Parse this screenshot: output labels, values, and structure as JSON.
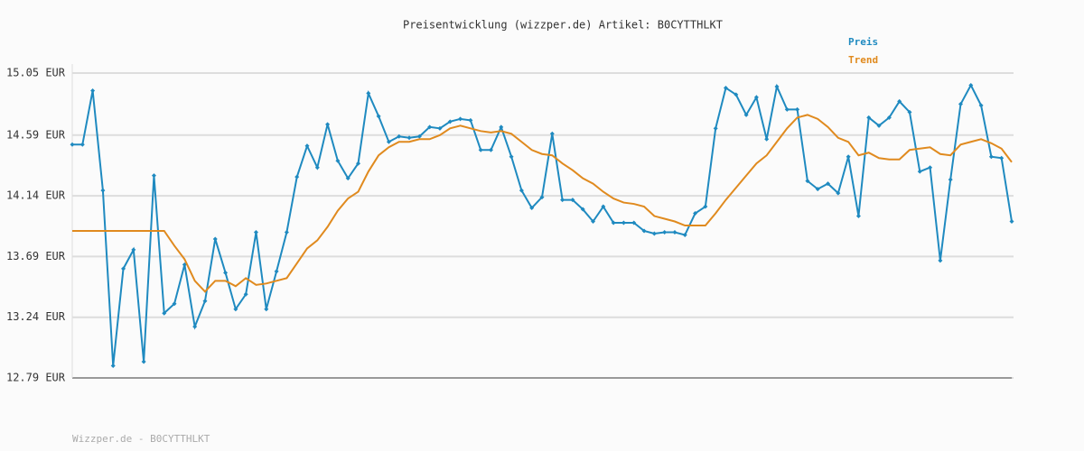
{
  "chart_data": {
    "type": "line",
    "title": "Preisentwicklung (wizzper.de) Artikel: B0CYTTHLKT",
    "footer": "Wizzper.de - B0CYTTHLKT",
    "ylim": [
      12.79,
      15.05
    ],
    "yticks": [
      {
        "value": 12.79,
        "label": "12.79 EUR"
      },
      {
        "value": 13.24,
        "label": "13.24 EUR"
      },
      {
        "value": 13.69,
        "label": "13.69 EUR"
      },
      {
        "value": 14.14,
        "label": "14.14 EUR"
      },
      {
        "value": 14.59,
        "label": "14.59 EUR"
      },
      {
        "value": 15.05,
        "label": "15.05 EUR"
      }
    ],
    "grid": true,
    "legend": "top-right",
    "series": [
      {
        "name": "Preis",
        "color": "#1f8ac0",
        "markers": true,
        "values": [
          14.52,
          14.52,
          14.92,
          14.18,
          12.88,
          13.6,
          13.74,
          12.91,
          14.29,
          13.27,
          13.34,
          13.63,
          13.17,
          13.36,
          13.82,
          13.57,
          13.3,
          13.41,
          13.87,
          13.3,
          13.58,
          13.87,
          14.28,
          14.51,
          14.35,
          14.67,
          14.4,
          14.27,
          14.38,
          14.9,
          14.73,
          14.54,
          14.58,
          14.57,
          14.58,
          14.65,
          14.64,
          14.69,
          14.71,
          14.7,
          14.48,
          14.48,
          14.65,
          14.43,
          14.18,
          14.05,
          14.13,
          14.6,
          14.11,
          14.11,
          14.04,
          13.95,
          14.06,
          13.94,
          13.94,
          13.94,
          13.88,
          13.86,
          13.87,
          13.87,
          13.85,
          14.01,
          14.06,
          14.64,
          14.94,
          14.89,
          14.74,
          14.87,
          14.56,
          14.95,
          14.78,
          14.78,
          14.25,
          14.19,
          14.23,
          14.16,
          14.43,
          13.99,
          14.72,
          14.66,
          14.72,
          14.84,
          14.76,
          14.32,
          14.35,
          13.66,
          14.26,
          14.82,
          14.96,
          14.81,
          14.43,
          14.42,
          13.95
        ]
      },
      {
        "name": "Trend",
        "color": "#e08a1e",
        "markers": false,
        "values": [
          13.88,
          13.88,
          13.88,
          13.88,
          13.88,
          13.88,
          13.88,
          13.88,
          13.88,
          13.88,
          13.77,
          13.67,
          13.51,
          13.43,
          13.51,
          13.51,
          13.47,
          13.53,
          13.48,
          13.49,
          13.51,
          13.53,
          13.64,
          13.75,
          13.81,
          13.91,
          14.03,
          14.12,
          14.17,
          14.32,
          14.44,
          14.5,
          14.54,
          14.54,
          14.56,
          14.56,
          14.59,
          14.64,
          14.66,
          14.64,
          14.62,
          14.61,
          14.62,
          14.6,
          14.54,
          14.48,
          14.45,
          14.44,
          14.38,
          14.33,
          14.27,
          14.23,
          14.17,
          14.12,
          14.09,
          14.08,
          14.06,
          13.99,
          13.97,
          13.95,
          13.92,
          13.92,
          13.92,
          14.01,
          14.11,
          14.2,
          14.29,
          14.38,
          14.44,
          14.54,
          14.64,
          14.72,
          14.74,
          14.71,
          14.65,
          14.57,
          14.54,
          14.44,
          14.46,
          14.42,
          14.41,
          14.41,
          14.48,
          14.49,
          14.5,
          14.45,
          14.44,
          14.52,
          14.54,
          14.56,
          14.53,
          14.49,
          14.39
        ]
      }
    ]
  }
}
